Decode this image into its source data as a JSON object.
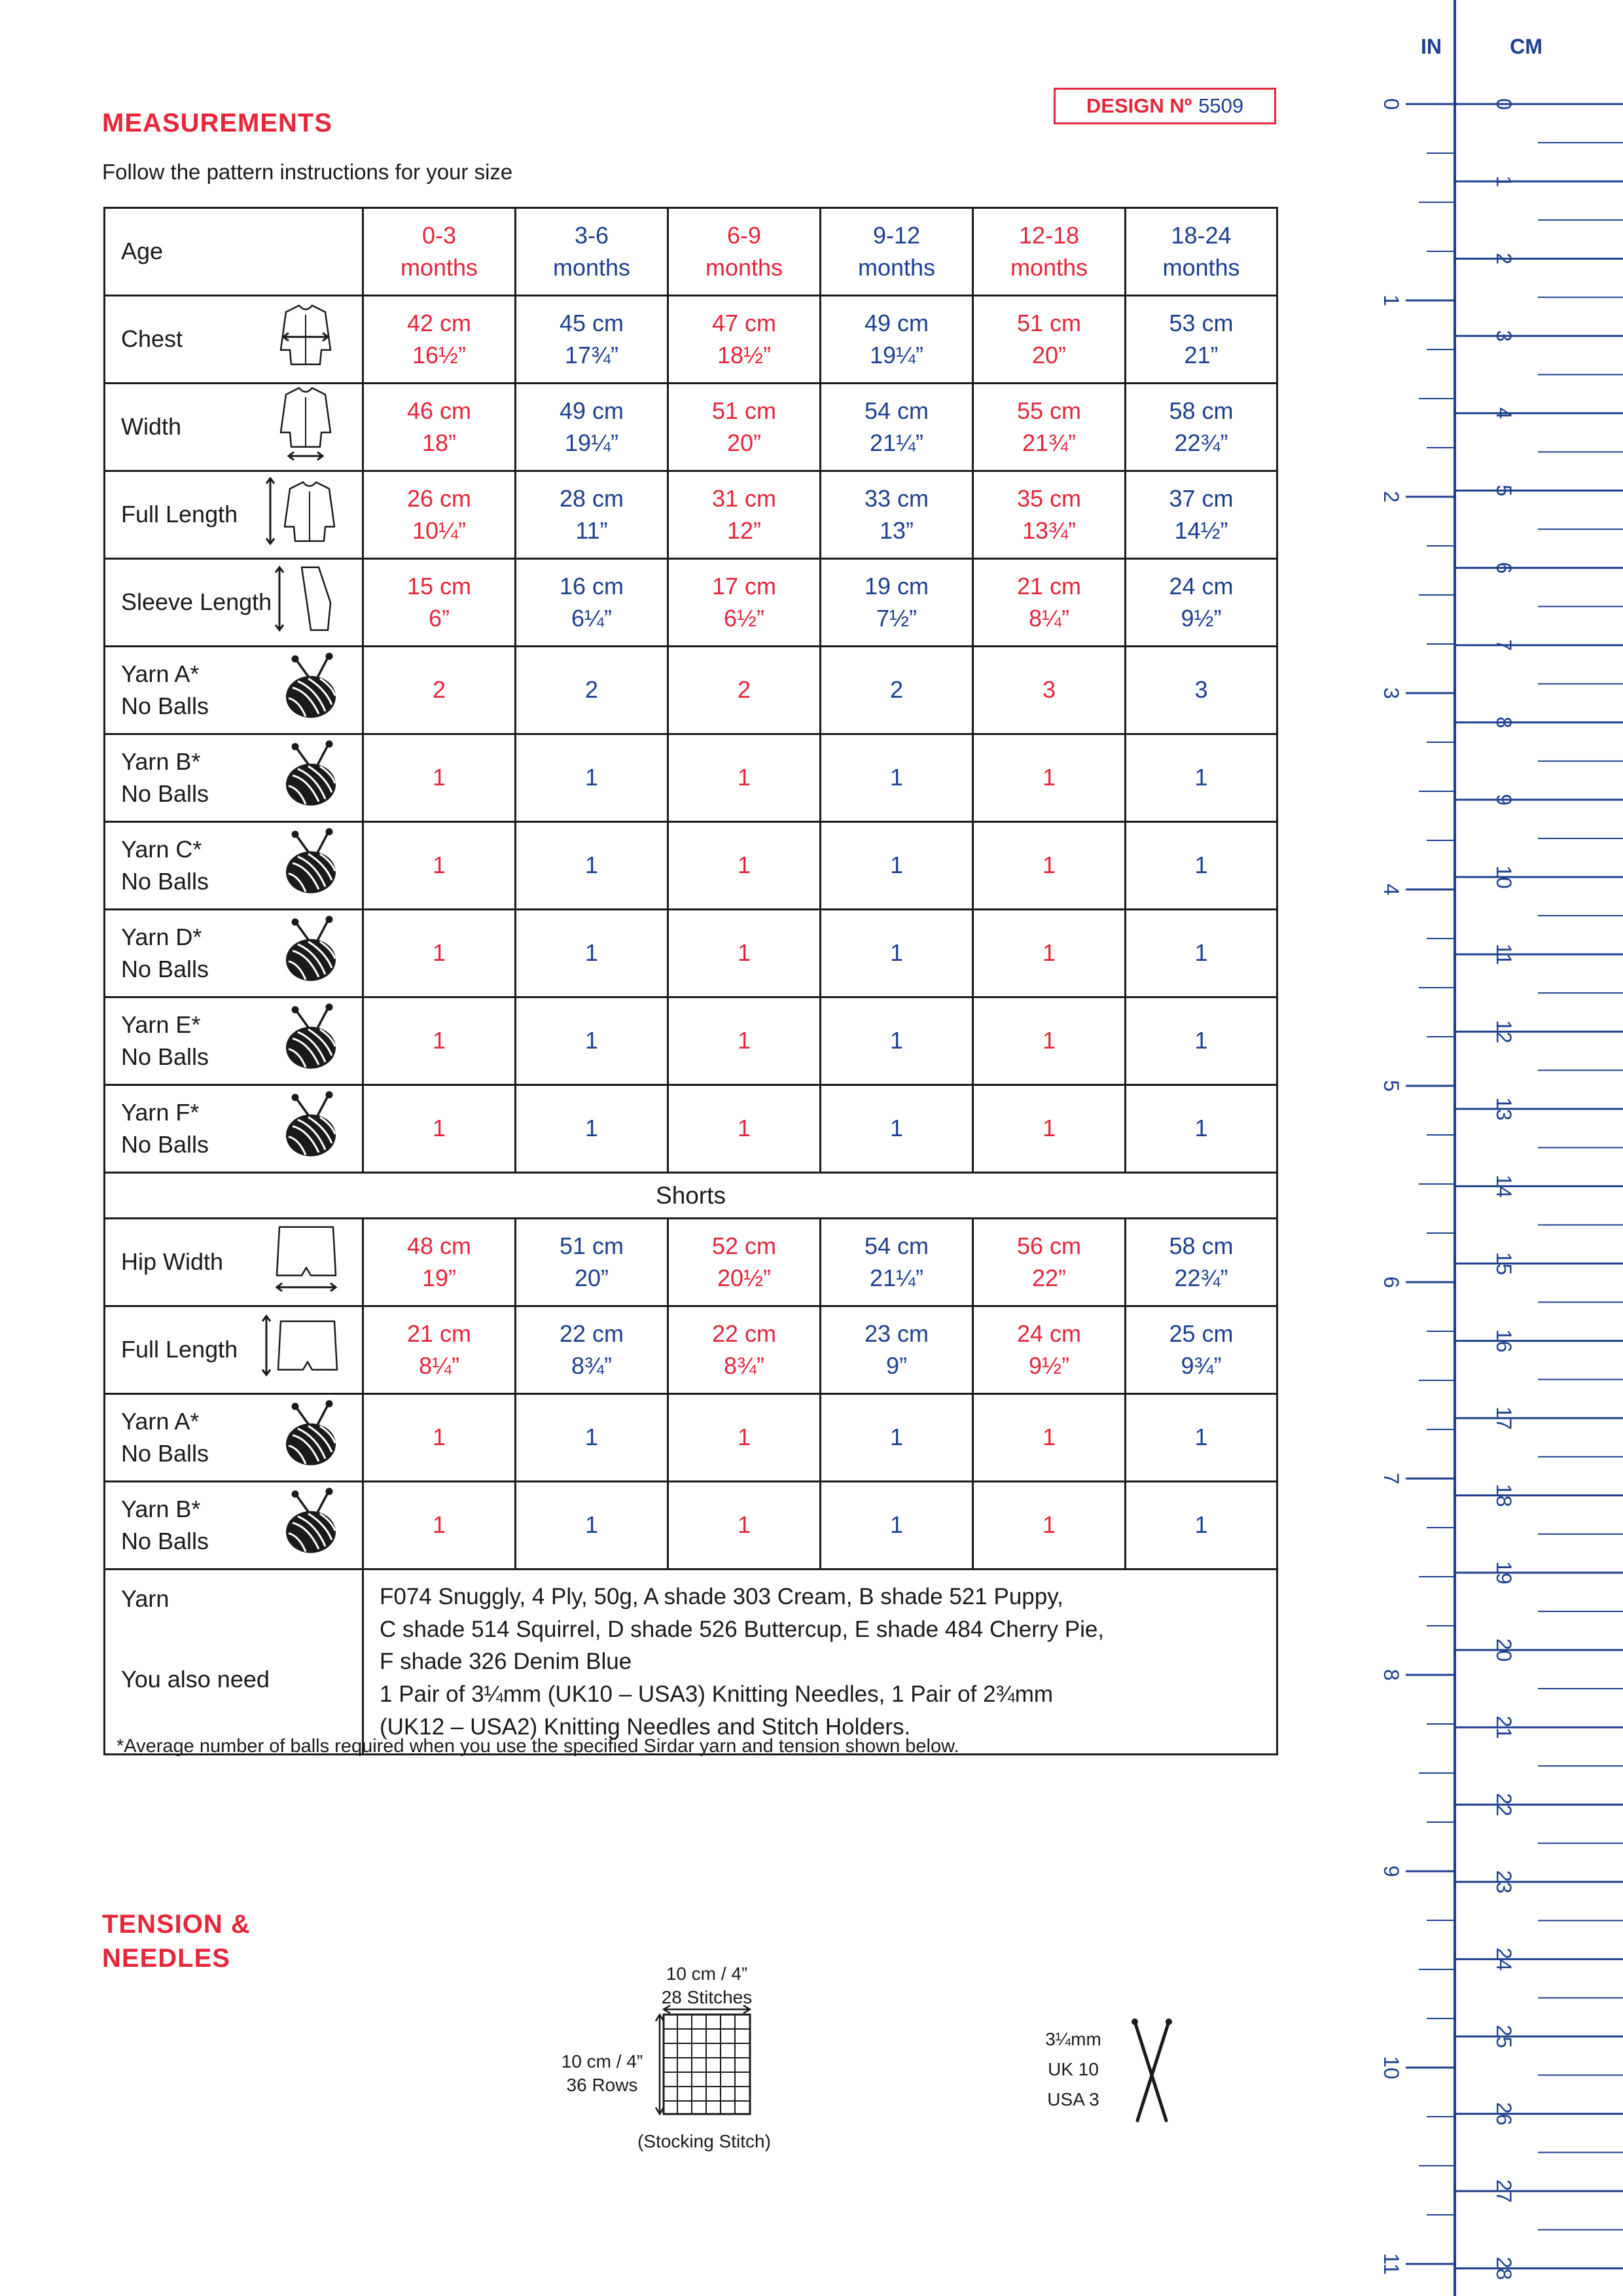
{
  "header": {
    "title": "MEASUREMENTS",
    "design_label": "DESIGN Nº",
    "design_no": "5509",
    "subtitle": "Follow the pattern instructions for your size"
  },
  "table": {
    "age_label": "Age",
    "sizes": [
      [
        "0-3",
        "months"
      ],
      [
        "3-6",
        "months"
      ],
      [
        "6-9",
        "months"
      ],
      [
        "9-12",
        "months"
      ],
      [
        "12-18",
        "months"
      ],
      [
        "18-24",
        "months"
      ]
    ],
    "rows": [
      {
        "label": [
          "Chest"
        ],
        "icon": "cardigan-chest-icon",
        "values": [
          [
            "42 cm",
            "16½”"
          ],
          [
            "45 cm",
            "17¾”"
          ],
          [
            "47 cm",
            "18½”"
          ],
          [
            "49 cm",
            "19¼”"
          ],
          [
            "51 cm",
            "20”"
          ],
          [
            "53 cm",
            "21”"
          ]
        ]
      },
      {
        "label": [
          "Width"
        ],
        "icon": "cardigan-width-icon",
        "values": [
          [
            "46 cm",
            "18”"
          ],
          [
            "49 cm",
            "19¼”"
          ],
          [
            "51 cm",
            "20”"
          ],
          [
            "54 cm",
            "21¼”"
          ],
          [
            "55 cm",
            "21¾”"
          ],
          [
            "58 cm",
            "22¾”"
          ]
        ]
      },
      {
        "label": [
          "Full Length"
        ],
        "icon": "cardigan-length-icon",
        "values": [
          [
            "26 cm",
            "10¼”"
          ],
          [
            "28 cm",
            "11”"
          ],
          [
            "31 cm",
            "12”"
          ],
          [
            "33 cm",
            "13”"
          ],
          [
            "35 cm",
            "13¾”"
          ],
          [
            "37 cm",
            "14½”"
          ]
        ]
      },
      {
        "label": [
          "Sleeve Length"
        ],
        "icon": "sleeve-length-icon",
        "values": [
          [
            "15 cm",
            "6”"
          ],
          [
            "16 cm",
            "6¼”"
          ],
          [
            "17 cm",
            "6½”"
          ],
          [
            "19 cm",
            "7½”"
          ],
          [
            "21 cm",
            "8¼”"
          ],
          [
            "24 cm",
            "9½”"
          ]
        ]
      },
      {
        "label": [
          "Yarn A*",
          "No Balls"
        ],
        "icon": "yarn-ball-icon",
        "values": [
          [
            "2"
          ],
          [
            "2"
          ],
          [
            "2"
          ],
          [
            "2"
          ],
          [
            "3"
          ],
          [
            "3"
          ]
        ]
      },
      {
        "label": [
          "Yarn B*",
          "No Balls"
        ],
        "icon": "yarn-ball-icon",
        "values": [
          [
            "1"
          ],
          [
            "1"
          ],
          [
            "1"
          ],
          [
            "1"
          ],
          [
            "1"
          ],
          [
            "1"
          ]
        ]
      },
      {
        "label": [
          "Yarn C*",
          "No Balls"
        ],
        "icon": "yarn-ball-icon",
        "values": [
          [
            "1"
          ],
          [
            "1"
          ],
          [
            "1"
          ],
          [
            "1"
          ],
          [
            "1"
          ],
          [
            "1"
          ]
        ]
      },
      {
        "label": [
          "Yarn D*",
          "No Balls"
        ],
        "icon": "yarn-ball-icon",
        "values": [
          [
            "1"
          ],
          [
            "1"
          ],
          [
            "1"
          ],
          [
            "1"
          ],
          [
            "1"
          ],
          [
            "1"
          ]
        ]
      },
      {
        "label": [
          "Yarn E*",
          "No Balls"
        ],
        "icon": "yarn-ball-icon",
        "values": [
          [
            "1"
          ],
          [
            "1"
          ],
          [
            "1"
          ],
          [
            "1"
          ],
          [
            "1"
          ],
          [
            "1"
          ]
        ]
      },
      {
        "label": [
          "Yarn F*",
          "No Balls"
        ],
        "icon": "yarn-ball-icon",
        "values": [
          [
            "1"
          ],
          [
            "1"
          ],
          [
            "1"
          ],
          [
            "1"
          ],
          [
            "1"
          ],
          [
            "1"
          ]
        ]
      }
    ],
    "shorts_label": "Shorts",
    "shorts_rows": [
      {
        "label": [
          "Hip Width"
        ],
        "icon": "shorts-width-icon",
        "values": [
          [
            "48 cm",
            "19”"
          ],
          [
            "51 cm",
            "20”"
          ],
          [
            "52 cm",
            "20½”"
          ],
          [
            "54 cm",
            "21¼”"
          ],
          [
            "56 cm",
            "22”"
          ],
          [
            "58 cm",
            "22¾”"
          ]
        ]
      },
      {
        "label": [
          "Full Length"
        ],
        "icon": "shorts-length-icon",
        "values": [
          [
            "21 cm",
            "8¼”"
          ],
          [
            "22 cm",
            "8¾”"
          ],
          [
            "22 cm",
            "8¾”"
          ],
          [
            "23 cm",
            "9”"
          ],
          [
            "24 cm",
            "9½”"
          ],
          [
            "25 cm",
            "9¾”"
          ]
        ]
      },
      {
        "label": [
          "Yarn A*",
          "No Balls"
        ],
        "icon": "yarn-ball-icon",
        "values": [
          [
            "1"
          ],
          [
            "1"
          ],
          [
            "1"
          ],
          [
            "1"
          ],
          [
            "1"
          ],
          [
            "1"
          ]
        ]
      },
      {
        "label": [
          "Yarn B*",
          "No Balls"
        ],
        "icon": "yarn-ball-icon",
        "values": [
          [
            "1"
          ],
          [
            "1"
          ],
          [
            "1"
          ],
          [
            "1"
          ],
          [
            "1"
          ],
          [
            "1"
          ]
        ]
      }
    ],
    "yarn_label": "Yarn",
    "also_need_label": "You also need",
    "yarn_text": [
      "F074 Snuggly, 4 Ply, 50g, A shade 303 Cream, B shade 521 Puppy,",
      "C shade 514 Squirrel, D shade 526 Buttercup, E shade 484 Cherry Pie,",
      "F shade 326 Denim Blue",
      "1 Pair of 3¼mm (UK10 – USA3) Knitting Needles, 1 Pair of 2¾mm",
      "(UK12 – USA2) Knitting Needles and Stitch Holders."
    ]
  },
  "footnote": "*Average number of balls required when you use the specified Sirdar yarn and tension shown below.",
  "tension": {
    "title": [
      "TENSION &",
      "NEEDLES"
    ],
    "width_label": "10 cm / 4”",
    "stitches": "28 Stitches",
    "height_label": "10 cm / 4”",
    "rows": "36 Rows",
    "stitch_type": "(Stocking Stitch)",
    "needle_size": "3¼mm",
    "needle_uk": "UK 10",
    "needle_usa": "USA 3"
  },
  "ruler": {
    "in_label": "IN",
    "cm_label": "CM",
    "inch_ticks": [
      "0",
      "1",
      "2",
      "3",
      "4",
      "5",
      "6",
      "7",
      "8",
      "9",
      "10",
      "11"
    ],
    "cm_ticks": [
      "0",
      "1",
      "2",
      "3",
      "4",
      "5",
      "6",
      "7",
      "8",
      "9",
      "10",
      "11",
      "12",
      "13",
      "14",
      "15",
      "16",
      "17",
      "18",
      "19",
      "20",
      "21",
      "22",
      "23",
      "24",
      "25",
      "26",
      "27",
      "28"
    ]
  },
  "colors": {
    "red": "#e5263b",
    "blue": "#1d3f8f"
  }
}
